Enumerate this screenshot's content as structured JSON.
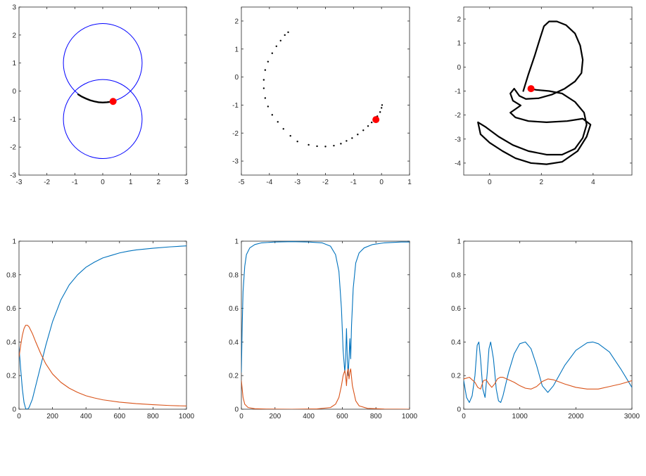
{
  "chart_data": [
    {
      "type": "line",
      "title": "",
      "xlabel": "",
      "ylabel": "",
      "xlim": [
        -3,
        3
      ],
      "ylim": [
        -3,
        3
      ],
      "xticks": [
        -3,
        -2,
        -1,
        0,
        1,
        2,
        3
      ],
      "yticks": [
        -3,
        -2,
        -1,
        0,
        1,
        2,
        3
      ],
      "colors": {
        "circles": "#0000ff",
        "trail": "#000000",
        "marker": "#ff0000"
      },
      "circles": [
        {
          "cx": 0,
          "cy": 1,
          "r": 1.41
        },
        {
          "cx": 0,
          "cy": -1,
          "r": 1.41
        }
      ],
      "trail": [
        [
          -0.88,
          -0.12
        ],
        [
          -0.75,
          -0.2
        ],
        [
          -0.6,
          -0.27
        ],
        [
          -0.45,
          -0.33
        ],
        [
          -0.3,
          -0.37
        ],
        [
          -0.15,
          -0.4
        ],
        [
          0,
          -0.41
        ],
        [
          0.15,
          -0.4
        ],
        [
          0.3,
          -0.38
        ]
      ],
      "marker": [
        0.37,
        -0.37
      ]
    },
    {
      "type": "scatter",
      "title": "",
      "xlabel": "",
      "ylabel": "",
      "xlim": [
        -5,
        1
      ],
      "ylim": [
        -3.5,
        2.5
      ],
      "xticks": [
        -5,
        -4,
        -3,
        -2,
        -1,
        0,
        1
      ],
      "yticks": [
        -3,
        -2,
        -1,
        0,
        1,
        2
      ],
      "colors": {
        "points": "#000000",
        "marker": "#ff0000"
      },
      "points": [
        [
          -3.33,
          1.6
        ],
        [
          -3.45,
          1.5
        ],
        [
          -3.6,
          1.3
        ],
        [
          -3.75,
          1.1
        ],
        [
          -3.9,
          0.85
        ],
        [
          -4.05,
          0.55
        ],
        [
          -4.15,
          0.25
        ],
        [
          -4.2,
          -0.1
        ],
        [
          -4.2,
          -0.4
        ],
        [
          -4.15,
          -0.75
        ],
        [
          -4.05,
          -1.05
        ],
        [
          -3.9,
          -1.35
        ],
        [
          -3.7,
          -1.6
        ],
        [
          -3.5,
          -1.85
        ],
        [
          -3.25,
          -2.1
        ],
        [
          -3.0,
          -2.3
        ],
        [
          -2.6,
          -2.42
        ],
        [
          -2.3,
          -2.47
        ],
        [
          -2.0,
          -2.48
        ],
        [
          -1.7,
          -2.45
        ],
        [
          -1.45,
          -2.38
        ],
        [
          -1.25,
          -2.28
        ],
        [
          -1.05,
          -2.18
        ],
        [
          -0.85,
          -2.05
        ],
        [
          -0.65,
          -1.9
        ],
        [
          -0.48,
          -1.75
        ],
        [
          -0.35,
          -1.62
        ],
        [
          -0.25,
          -1.52
        ],
        [
          -0.15,
          -1.4
        ],
        [
          -0.05,
          -1.25
        ],
        [
          0.0,
          -1.1
        ],
        [
          0.02,
          -1.0
        ]
      ],
      "marker": [
        -0.2,
        -1.52
      ]
    },
    {
      "type": "line",
      "title": "",
      "xlabel": "",
      "ylabel": "",
      "xlim": [
        -1,
        5.5
      ],
      "ylim": [
        -4.5,
        2.5
      ],
      "xticks": [
        0,
        2,
        4
      ],
      "yticks": [
        -4,
        -3,
        -2,
        -1,
        0,
        1,
        2
      ],
      "colors": {
        "curve": "#000000",
        "marker": "#ff0000"
      },
      "curve": [
        [
          1.3,
          -1.0
        ],
        [
          1.5,
          -0.3
        ],
        [
          1.75,
          0.5
        ],
        [
          1.95,
          1.2
        ],
        [
          2.1,
          1.7
        ],
        [
          2.3,
          1.9
        ],
        [
          2.6,
          1.9
        ],
        [
          2.95,
          1.75
        ],
        [
          3.3,
          1.4
        ],
        [
          3.5,
          0.9
        ],
        [
          3.6,
          0.3
        ],
        [
          3.55,
          -0.25
        ],
        [
          3.3,
          -0.6
        ],
        [
          2.9,
          -0.9
        ],
        [
          2.4,
          -1.15
        ],
        [
          1.9,
          -1.3
        ],
        [
          1.4,
          -1.33
        ],
        [
          1.15,
          -1.2
        ],
        [
          0.95,
          -0.9
        ],
        [
          0.8,
          -1.1
        ],
        [
          0.9,
          -1.4
        ],
        [
          1.2,
          -1.6
        ],
        [
          1.0,
          -1.75
        ],
        [
          0.8,
          -1.9
        ],
        [
          1.0,
          -2.1
        ],
        [
          1.5,
          -2.25
        ],
        [
          2.2,
          -2.3
        ],
        [
          3.0,
          -2.25
        ],
        [
          3.6,
          -2.15
        ],
        [
          3.9,
          -2.4
        ],
        [
          3.75,
          -2.9
        ],
        [
          3.4,
          -3.5
        ],
        [
          2.8,
          -3.95
        ],
        [
          2.2,
          -4.05
        ],
        [
          1.6,
          -4.0
        ],
        [
          1.0,
          -3.8
        ],
        [
          0.5,
          -3.5
        ],
        [
          0.0,
          -3.15
        ],
        [
          -0.35,
          -2.8
        ],
        [
          -0.45,
          -2.3
        ],
        [
          -0.15,
          -2.5
        ],
        [
          0.35,
          -2.9
        ],
        [
          0.9,
          -3.25
        ],
        [
          1.5,
          -3.5
        ],
        [
          2.2,
          -3.65
        ],
        [
          2.8,
          -3.65
        ],
        [
          3.3,
          -3.4
        ],
        [
          3.6,
          -2.95
        ],
        [
          3.75,
          -2.4
        ],
        [
          3.65,
          -1.9
        ],
        [
          3.3,
          -1.45
        ],
        [
          2.8,
          -1.1
        ],
        [
          2.3,
          -1.0
        ],
        [
          1.8,
          -0.95
        ],
        [
          1.55,
          -0.9
        ]
      ],
      "marker": [
        1.6,
        -0.9
      ]
    },
    {
      "type": "line",
      "title": "",
      "xlabel": "",
      "ylabel": "",
      "xlim": [
        0,
        1000
      ],
      "ylim": [
        0,
        1
      ],
      "xticks": [
        0,
        200,
        400,
        600,
        800,
        1000
      ],
      "yticks": [
        0,
        0.2,
        0.4,
        0.6,
        0.8,
        1
      ],
      "series": [
        {
          "color": "#0072bd",
          "x": [
            0,
            10,
            20,
            30,
            40,
            50,
            60,
            80,
            100,
            130,
            160,
            200,
            250,
            300,
            350,
            400,
            450,
            500,
            550,
            600,
            650,
            700,
            800,
            900,
            1000
          ],
          "y": [
            0.37,
            0.24,
            0.12,
            0.04,
            0.003,
            0.0,
            0.01,
            0.06,
            0.14,
            0.26,
            0.38,
            0.52,
            0.65,
            0.74,
            0.8,
            0.845,
            0.875,
            0.9,
            0.915,
            0.93,
            0.94,
            0.948,
            0.958,
            0.966,
            0.972
          ]
        },
        {
          "color": "#d95319",
          "x": [
            0,
            10,
            20,
            30,
            40,
            50,
            60,
            80,
            100,
            130,
            160,
            200,
            250,
            300,
            350,
            400,
            450,
            500,
            600,
            700,
            800,
            900,
            1000
          ],
          "y": [
            0.31,
            0.38,
            0.44,
            0.48,
            0.5,
            0.5,
            0.49,
            0.45,
            0.4,
            0.33,
            0.27,
            0.21,
            0.16,
            0.125,
            0.1,
            0.08,
            0.067,
            0.056,
            0.042,
            0.033,
            0.027,
            0.022,
            0.019
          ]
        }
      ]
    },
    {
      "type": "line",
      "title": "",
      "xlabel": "",
      "ylabel": "",
      "xlim": [
        0,
        1000
      ],
      "ylim": [
        0,
        1
      ],
      "xticks": [
        0,
        200,
        400,
        600,
        800,
        1000
      ],
      "yticks": [
        0,
        0.2,
        0.4,
        0.6,
        0.8,
        1
      ],
      "series": [
        {
          "color": "#0072bd",
          "x": [
            0,
            5,
            10,
            20,
            30,
            50,
            80,
            120,
            200,
            300,
            400,
            480,
            530,
            560,
            580,
            595,
            605,
            615,
            620,
            625,
            630,
            635,
            640,
            645,
            650,
            655,
            665,
            680,
            700,
            730,
            780,
            850,
            950,
            1000
          ],
          "y": [
            0.22,
            0.5,
            0.7,
            0.85,
            0.92,
            0.96,
            0.98,
            0.99,
            0.995,
            0.997,
            0.995,
            0.99,
            0.97,
            0.92,
            0.82,
            0.6,
            0.35,
            0.22,
            0.3,
            0.48,
            0.3,
            0.2,
            0.3,
            0.42,
            0.3,
            0.5,
            0.72,
            0.87,
            0.93,
            0.96,
            0.98,
            0.99,
            0.995,
            0.995
          ]
        },
        {
          "color": "#d95319",
          "x": [
            0,
            5,
            10,
            20,
            40,
            80,
            150,
            300,
            450,
            530,
            560,
            580,
            595,
            605,
            615,
            620,
            625,
            630,
            635,
            640,
            645,
            650,
            660,
            680,
            700,
            750,
            850,
            1000
          ],
          "y": [
            0.17,
            0.12,
            0.07,
            0.03,
            0.01,
            0.003,
            0.001,
            0.0,
            0.002,
            0.01,
            0.03,
            0.07,
            0.14,
            0.2,
            0.23,
            0.2,
            0.14,
            0.22,
            0.24,
            0.18,
            0.22,
            0.24,
            0.14,
            0.05,
            0.02,
            0.005,
            0.001,
            0.0
          ]
        }
      ]
    },
    {
      "type": "line",
      "title": "",
      "xlabel": "",
      "ylabel": "",
      "xlim": [
        0,
        3000
      ],
      "ylim": [
        0,
        1
      ],
      "xticks": [
        0,
        1000,
        2000,
        3000
      ],
      "yticks": [
        0,
        0.2,
        0.4,
        0.6,
        0.8,
        1
      ],
      "series": [
        {
          "color": "#0072bd",
          "x": [
            0,
            50,
            100,
            150,
            200,
            240,
            270,
            300,
            340,
            380,
            420,
            450,
            480,
            530,
            580,
            620,
            660,
            700,
            800,
            900,
            1000,
            1100,
            1200,
            1300,
            1400,
            1500,
            1600,
            1800,
            2000,
            2200,
            2300,
            2400,
            2600,
            2800,
            3000
          ],
          "y": [
            0.17,
            0.07,
            0.04,
            0.08,
            0.2,
            0.38,
            0.4,
            0.3,
            0.12,
            0.07,
            0.22,
            0.36,
            0.4,
            0.3,
            0.12,
            0.05,
            0.04,
            0.08,
            0.22,
            0.33,
            0.39,
            0.4,
            0.36,
            0.26,
            0.14,
            0.1,
            0.14,
            0.26,
            0.35,
            0.395,
            0.4,
            0.39,
            0.34,
            0.24,
            0.13
          ]
        },
        {
          "color": "#d95319",
          "x": [
            0,
            100,
            200,
            250,
            300,
            350,
            400,
            450,
            500,
            550,
            600,
            650,
            700,
            800,
            900,
            1000,
            1100,
            1200,
            1300,
            1400,
            1500,
            1600,
            1800,
            2000,
            2200,
            2400,
            2600,
            2800,
            3000
          ],
          "y": [
            0.18,
            0.19,
            0.16,
            0.13,
            0.12,
            0.17,
            0.175,
            0.15,
            0.13,
            0.15,
            0.18,
            0.19,
            0.19,
            0.175,
            0.16,
            0.14,
            0.125,
            0.12,
            0.135,
            0.165,
            0.18,
            0.175,
            0.15,
            0.13,
            0.12,
            0.12,
            0.135,
            0.15,
            0.17
          ]
        }
      ]
    }
  ]
}
